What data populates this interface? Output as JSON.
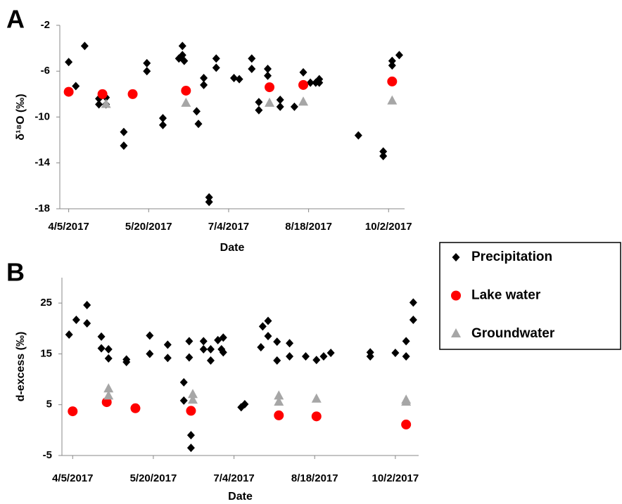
{
  "chart_data": [
    {
      "type": "scatter",
      "panel": "A",
      "xlabel": "Date",
      "ylabel": "δ¹⁸O (‰)",
      "xlim": [
        "2017-03-31",
        "2017-10-11"
      ],
      "xticks": [
        {
          "value": "2017-04-05",
          "label": "4/5/2017"
        },
        {
          "value": "2017-05-20",
          "label": "5/20/2017"
        },
        {
          "value": "2017-07-04",
          "label": "7/4/2017"
        },
        {
          "value": "2017-08-18",
          "label": "8/18/2017"
        },
        {
          "value": "2017-10-02",
          "label": "10/2/2017"
        }
      ],
      "ylim": [
        -18,
        -2
      ],
      "yticks": [
        -2,
        -6,
        -10,
        -14,
        -18
      ],
      "grid": false,
      "series": [
        {
          "name": "Precipitation",
          "color": "#000000",
          "marker": "diamond",
          "x": [
            "2017-04-05",
            "2017-04-09",
            "2017-04-14",
            "2017-04-22",
            "2017-04-22",
            "2017-04-26",
            "2017-04-26",
            "2017-05-06",
            "2017-05-06",
            "2017-05-19",
            "2017-05-19",
            "2017-05-28",
            "2017-05-28",
            "2017-06-06",
            "2017-06-08",
            "2017-06-08",
            "2017-06-09",
            "2017-06-16",
            "2017-06-17",
            "2017-06-20",
            "2017-06-20",
            "2017-06-23",
            "2017-06-23",
            "2017-06-27",
            "2017-06-27",
            "2017-07-07",
            "2017-07-10",
            "2017-07-17",
            "2017-07-17",
            "2017-07-21",
            "2017-07-21",
            "2017-07-26",
            "2017-07-26",
            "2017-08-02",
            "2017-08-02",
            "2017-08-10",
            "2017-08-15",
            "2017-08-19",
            "2017-08-22",
            "2017-08-24",
            "2017-08-24",
            "2017-09-15",
            "2017-09-29",
            "2017-09-29",
            "2017-10-04",
            "2017-10-04",
            "2017-10-08"
          ],
          "values": [
            -5.2,
            -7.3,
            -3.8,
            -8.4,
            -8.9,
            -8.3,
            -8.9,
            -11.3,
            -12.5,
            -5.3,
            -6.0,
            -10.1,
            -10.7,
            -4.9,
            -3.8,
            -4.6,
            -5.1,
            -9.5,
            -10.6,
            -6.6,
            -7.2,
            -17.0,
            -17.4,
            -4.9,
            -5.7,
            -6.6,
            -6.7,
            -4.9,
            -5.8,
            -8.7,
            -9.4,
            -5.8,
            -6.4,
            -8.5,
            -9.1,
            -9.1,
            -6.1,
            -7.0,
            -7.0,
            -6.7,
            -7.0,
            -11.6,
            -13.0,
            -13.4,
            -5.1,
            -5.5,
            -4.6
          ]
        },
        {
          "name": "Lake water",
          "color": "#ff0000",
          "marker": "circle",
          "x": [
            "2017-04-05",
            "2017-04-24",
            "2017-05-11",
            "2017-06-10",
            "2017-07-27",
            "2017-08-15",
            "2017-10-04"
          ],
          "values": [
            -7.8,
            -8.0,
            -8.0,
            -7.7,
            -7.4,
            -7.2,
            -6.9
          ]
        },
        {
          "name": "Groundwater",
          "color": "#a6a6a6",
          "marker": "triangle",
          "x": [
            "2017-04-26",
            "2017-06-10",
            "2017-07-27",
            "2017-08-15",
            "2017-10-04"
          ],
          "values": [
            -8.9,
            -8.8,
            -8.8,
            -8.7,
            -8.6
          ]
        }
      ]
    },
    {
      "type": "scatter",
      "panel": "B",
      "xlabel": "Date",
      "ylabel": "d-excess (‰)",
      "xlim": [
        "2017-03-30",
        "2017-10-15"
      ],
      "xticks": [
        {
          "value": "2017-04-05",
          "label": "4/5/2017"
        },
        {
          "value": "2017-05-20",
          "label": "5/20/2017"
        },
        {
          "value": "2017-07-04",
          "label": "7/4/2017"
        },
        {
          "value": "2017-08-18",
          "label": "8/18/2017"
        },
        {
          "value": "2017-10-02",
          "label": "10/2/2017"
        }
      ],
      "ylim": [
        -5,
        30
      ],
      "yticks": [
        -5,
        5,
        15,
        25
      ],
      "grid": false,
      "series": [
        {
          "color": "#000000",
          "marker": "diamond",
          "x": [
            "2017-04-03",
            "2017-04-07",
            "2017-04-13",
            "2017-04-13",
            "2017-04-21",
            "2017-04-21",
            "2017-04-25",
            "2017-04-25",
            "2017-05-05",
            "2017-05-05",
            "2017-05-18",
            "2017-05-18",
            "2017-05-28",
            "2017-05-28",
            "2017-06-06",
            "2017-06-06",
            "2017-06-09",
            "2017-06-09",
            "2017-06-10",
            "2017-06-10",
            "2017-06-17",
            "2017-06-17",
            "2017-06-21",
            "2017-06-21",
            "2017-06-25",
            "2017-06-27",
            "2017-06-28",
            "2017-06-28",
            "2017-07-08",
            "2017-07-10",
            "2017-07-19",
            "2017-07-20",
            "2017-07-23",
            "2017-07-23",
            "2017-07-28",
            "2017-07-28",
            "2017-08-04",
            "2017-08-04",
            "2017-08-13",
            "2017-08-19",
            "2017-08-23",
            "2017-08-27",
            "2017-09-18",
            "2017-09-18",
            "2017-10-02",
            "2017-10-08",
            "2017-10-08",
            "2017-10-12",
            "2017-10-12"
          ],
          "values": [
            18.8,
            21.7,
            24.6,
            21.0,
            18.4,
            16.1,
            15.9,
            14.1,
            13.9,
            13.4,
            18.6,
            15.0,
            16.8,
            14.2,
            9.4,
            5.8,
            17.5,
            14.3,
            -1.0,
            -3.5,
            17.5,
            15.9,
            13.7,
            15.9,
            17.7,
            15.9,
            18.2,
            15.3,
            4.5,
            5.1,
            16.3,
            20.4,
            21.5,
            18.5,
            17.4,
            13.7,
            17.1,
            14.5,
            14.5,
            13.8,
            14.5,
            15.2,
            15.3,
            14.5,
            15.2,
            14.5,
            17.5,
            21.7,
            25.1
          ]
        },
        {
          "color": "#ff0000",
          "marker": "circle",
          "x": [
            "2017-04-05",
            "2017-04-24",
            "2017-05-10",
            "2017-06-10",
            "2017-07-29",
            "2017-08-19",
            "2017-10-08"
          ],
          "values": [
            3.7,
            5.5,
            4.3,
            3.8,
            2.9,
            2.7,
            1.1
          ]
        },
        {
          "color": "#a6a6a6",
          "marker": "triangle",
          "x": [
            "2017-04-25",
            "2017-04-25",
            "2017-06-11",
            "2017-06-11",
            "2017-07-29",
            "2017-07-29",
            "2017-08-19",
            "2017-10-08",
            "2017-10-08"
          ],
          "values": [
            8.1,
            6.7,
            7.0,
            5.9,
            6.7,
            5.5,
            6.1,
            5.9,
            5.5
          ]
        }
      ]
    }
  ]
}
